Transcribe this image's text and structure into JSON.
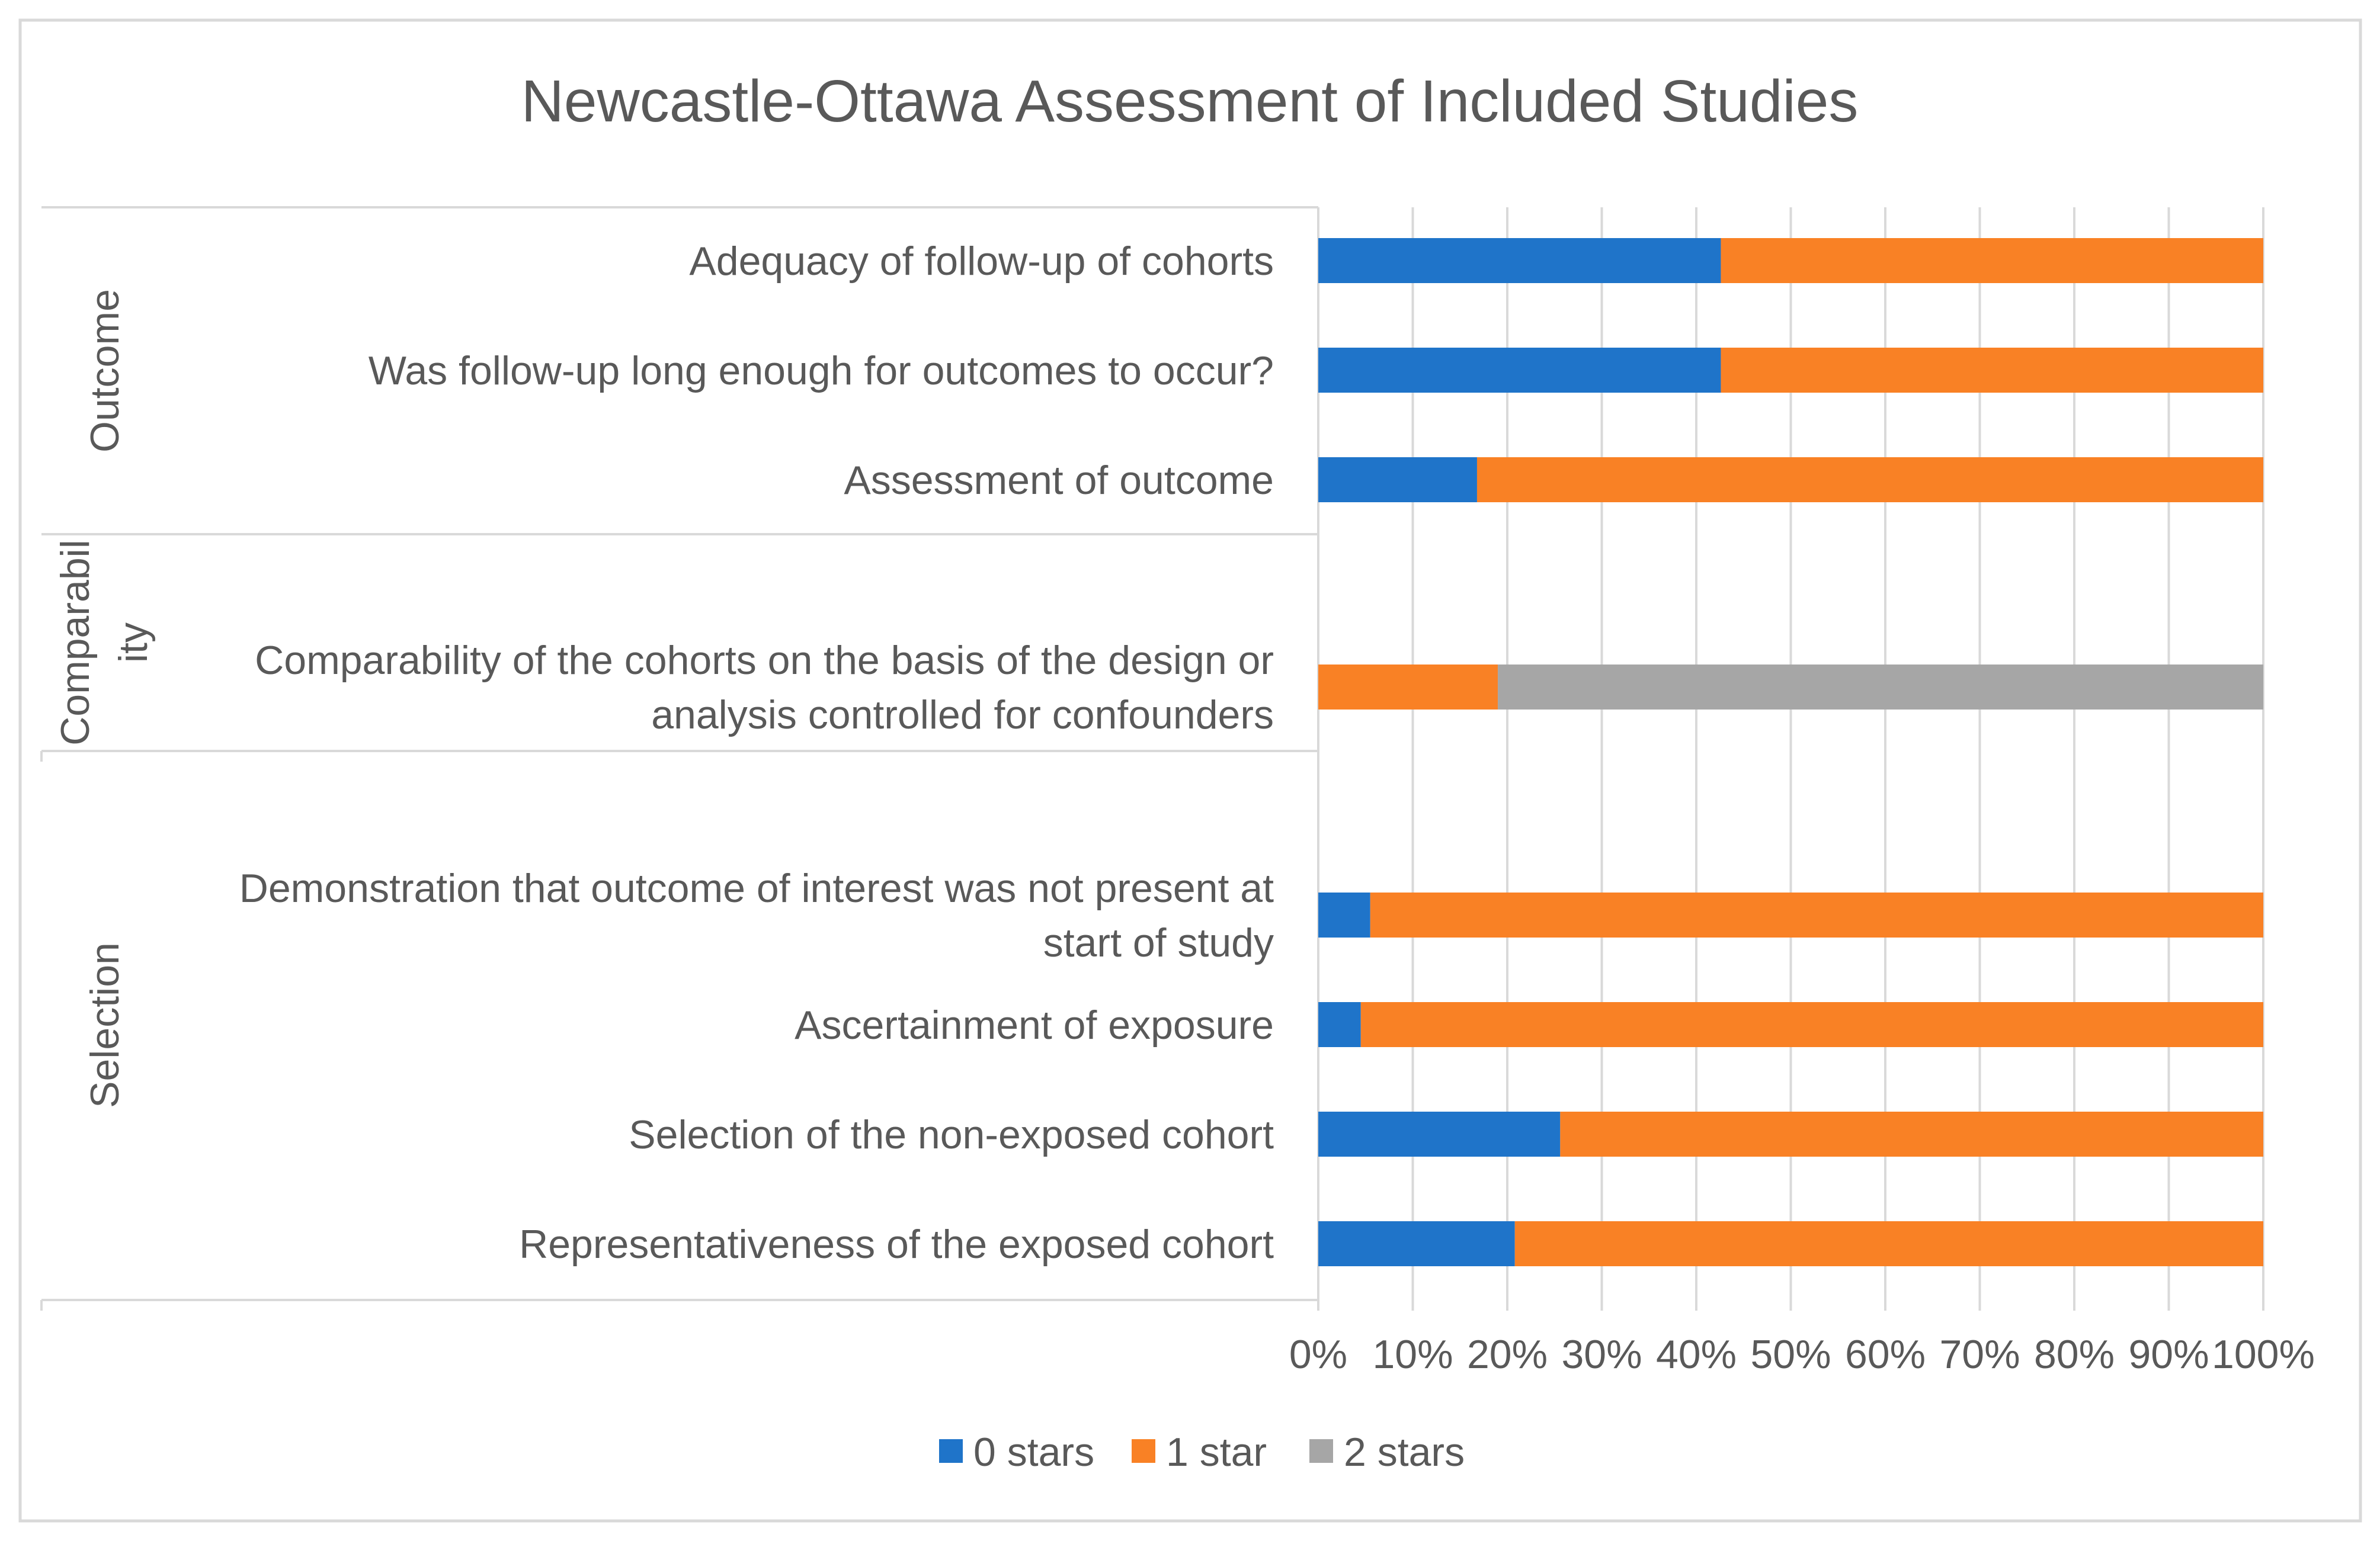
{
  "chart_data": {
    "type": "bar",
    "orientation": "horizontal",
    "stacked": "percent",
    "title": "Newcastle-Ottawa Assessment of Included Studies",
    "xlim": [
      0,
      100
    ],
    "x_ticks": [
      "0%",
      "10%",
      "20%",
      "30%",
      "40%",
      "50%",
      "60%",
      "70%",
      "80%",
      "90%",
      "100%"
    ],
    "grid": true,
    "legend_position": "bottom",
    "groups": [
      {
        "name": "Outcome",
        "label_lines": [
          "Outcome"
        ]
      },
      {
        "name": "Comparability",
        "label_lines": [
          "Comparabil",
          "ity"
        ]
      },
      {
        "name": "Selection",
        "label_lines": [
          "Selection"
        ]
      }
    ],
    "categories": [
      {
        "group": "Outcome",
        "lines": [
          "Adequacy of follow-up of cohorts"
        ]
      },
      {
        "group": "Outcome",
        "lines": [
          "Was follow-up long enough for outcomes to occur?"
        ]
      },
      {
        "group": "Outcome",
        "lines": [
          "Assessment of outcome"
        ]
      },
      {
        "group": "Comparability",
        "lines": [
          "Comparability of the cohorts on the basis of the design or",
          "analysis controlled for confounders"
        ]
      },
      {
        "group": "Selection",
        "lines": [
          "Demonstration that outcome of interest was not present at",
          "start of study"
        ]
      },
      {
        "group": "Selection",
        "lines": [
          "Ascertainment of exposure"
        ]
      },
      {
        "group": "Selection",
        "lines": [
          "Selection of the non-exposed cohort"
        ]
      },
      {
        "group": "Selection",
        "lines": [
          "Representativeness of the exposed cohort"
        ]
      }
    ],
    "series": [
      {
        "name": "0 stars",
        "color": "#1F74C9",
        "values": [
          42.6,
          42.6,
          16.8,
          0,
          5.5,
          4.5,
          25.6,
          20.8
        ]
      },
      {
        "name": "1 star",
        "color": "#F98125",
        "values": [
          57.4,
          57.4,
          83.2,
          19.0,
          94.5,
          95.5,
          74.4,
          79.2
        ]
      },
      {
        "name": "2 stars",
        "color": "#A6A6A6",
        "values": [
          0,
          0,
          0,
          81.0,
          0,
          0,
          0,
          0
        ]
      }
    ]
  }
}
